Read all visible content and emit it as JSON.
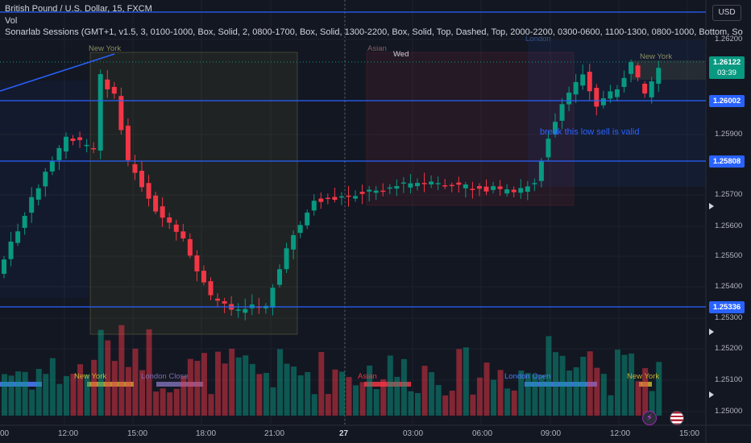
{
  "header": {
    "title": "British Pound / U.S. Dollar, 15, FXCM",
    "volume_label": "Vol",
    "indicator": "Sonarlab Sessions (GMT+1, v1.5, 3, 0100-1000, Box, Solid, 2, 0800-1700, Box, Solid, 1300-2200, Box, Solid, Top, Dashed, Top, 2000-2200, 0300-0600, 1100-1300, 0800-1000, Bottom, So"
  },
  "currency": "USD",
  "price_axis": [
    "1.26200",
    "1.25900",
    "1.25700",
    "1.25600",
    "1.25500",
    "1.25400",
    "1.25300",
    "1.25200",
    "1.25100",
    "1.25000"
  ],
  "level_badges": [
    "1.26002",
    "1.25808",
    "1.25336"
  ],
  "current_price": {
    "price": "1.26122",
    "countdown": "03:39"
  },
  "time_axis": [
    "00",
    "12:00",
    "15:00",
    "18:00",
    "21:00",
    "27",
    "03:00",
    "06:00",
    "09:00",
    "12:00",
    "15:00"
  ],
  "chart_labels": {
    "wed": "Wed",
    "session_ny_top": "New York",
    "session_asian_top": "Asian",
    "session_london_top": "London",
    "session_ny_top2": "New York",
    "note": "break this low sell is valid"
  },
  "bottom_sessions": {
    "ny1": "New York",
    "london_close": "London Close",
    "asian": "Asian",
    "london_open": "London Open",
    "ny2": "New York"
  },
  "colors": {
    "bg": "#131722",
    "up": "#089981",
    "down": "#f23645",
    "level": "#2962ff"
  },
  "icons": {
    "bolt": "lightning-icon",
    "flag": "us-flag-icon"
  }
}
